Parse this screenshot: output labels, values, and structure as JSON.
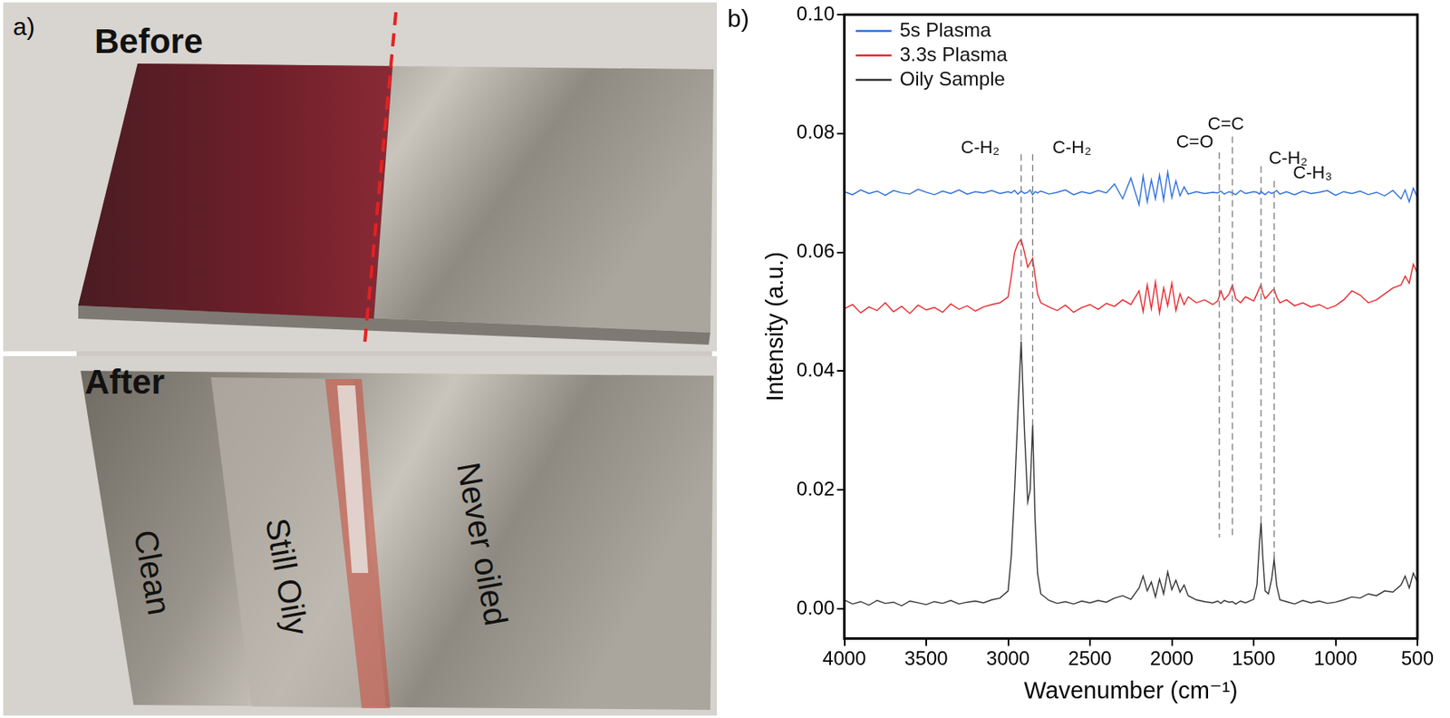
{
  "panel_a": {
    "label": "a)",
    "before": {
      "title": "Before"
    },
    "after": {
      "title": "After",
      "regions": [
        "Clean",
        "Still Oily",
        "Never oiled"
      ]
    }
  },
  "chart_data": {
    "type": "line",
    "label": "b)",
    "x_label": "Wavenumber (cm⁻¹)",
    "y_label": "Intensity (a.u.)",
    "xlim": [
      4000,
      500
    ],
    "xticks": [
      4000,
      3500,
      3000,
      2500,
      2000,
      1500,
      1000,
      500
    ],
    "ylim": [
      -0.005,
      0.1
    ],
    "yticks": [
      {
        "value": 0,
        "label": "0.00"
      },
      {
        "value": 0.02,
        "label": "0.02"
      },
      {
        "value": 0.04,
        "label": "0.04"
      },
      {
        "value": 0.06,
        "label": "0.06"
      },
      {
        "value": 0.08,
        "label": "0.08"
      },
      {
        "value": 0.1,
        "label": "0.10"
      }
    ],
    "grid": false,
    "legend": "upper left",
    "x": [
      4000,
      3950,
      3900,
      3850,
      3800,
      3750,
      3700,
      3650,
      3600,
      3550,
      3500,
      3450,
      3400,
      3350,
      3300,
      3250,
      3200,
      3150,
      3100,
      3050,
      3000,
      2980,
      2960,
      2940,
      2920,
      2900,
      2880,
      2865,
      2850,
      2835,
      2820,
      2800,
      2750,
      2700,
      2650,
      2600,
      2550,
      2500,
      2450,
      2400,
      2350,
      2300,
      2250,
      2200,
      2175,
      2150,
      2125,
      2100,
      2075,
      2050,
      2025,
      2000,
      1975,
      1950,
      1925,
      1900,
      1850,
      1800,
      1750,
      1720,
      1700,
      1680,
      1650,
      1630,
      1610,
      1580,
      1550,
      1500,
      1480,
      1465,
      1455,
      1445,
      1430,
      1410,
      1390,
      1375,
      1360,
      1340,
      1300,
      1250,
      1200,
      1150,
      1100,
      1050,
      1000,
      950,
      900,
      850,
      800,
      750,
      700,
      650,
      600,
      575,
      550,
      525,
      500
    ],
    "series": [
      {
        "name": "5s Plasma",
        "color": "#2e6fdc",
        "values": [
          0.0702,
          0.0697,
          0.0705,
          0.0699,
          0.0703,
          0.0696,
          0.0704,
          0.07,
          0.0698,
          0.0706,
          0.0701,
          0.0697,
          0.0703,
          0.0699,
          0.0705,
          0.0698,
          0.0702,
          0.07,
          0.0704,
          0.0699,
          0.0702,
          0.07,
          0.0704,
          0.0698,
          0.0703,
          0.0699,
          0.0701,
          0.0705,
          0.0697,
          0.0702,
          0.07,
          0.0703,
          0.0698,
          0.0701,
          0.0705,
          0.0697,
          0.0702,
          0.0699,
          0.0704,
          0.07,
          0.0715,
          0.069,
          0.0725,
          0.068,
          0.0728,
          0.0685,
          0.0722,
          0.069,
          0.073,
          0.0688,
          0.0735,
          0.0692,
          0.072,
          0.0695,
          0.071,
          0.0698,
          0.0702,
          0.0699,
          0.0701,
          0.07,
          0.0703,
          0.0698,
          0.0702,
          0.07,
          0.0697,
          0.0704,
          0.0699,
          0.0702,
          0.0701,
          0.0698,
          0.0703,
          0.07,
          0.0697,
          0.0702,
          0.0699,
          0.0701,
          0.0704,
          0.0698,
          0.0702,
          0.0697,
          0.0703,
          0.0699,
          0.0701,
          0.0704,
          0.0696,
          0.0702,
          0.0699,
          0.0703,
          0.0697,
          0.0701,
          0.0695,
          0.0704,
          0.069,
          0.0705,
          0.0685,
          0.0708,
          0.0692
        ]
      },
      {
        "name": "3.3s Plasma",
        "color": "#e8262b",
        "values": [
          0.0505,
          0.0512,
          0.0498,
          0.0508,
          0.0502,
          0.0515,
          0.05,
          0.0509,
          0.0497,
          0.0511,
          0.0503,
          0.0507,
          0.0499,
          0.0513,
          0.0504,
          0.051,
          0.0501,
          0.0508,
          0.0512,
          0.0515,
          0.0525,
          0.056,
          0.06,
          0.0615,
          0.0622,
          0.06,
          0.0575,
          0.0582,
          0.059,
          0.056,
          0.053,
          0.0515,
          0.0508,
          0.0502,
          0.0511,
          0.0499,
          0.0507,
          0.0512,
          0.0504,
          0.0514,
          0.0509,
          0.052,
          0.0512,
          0.0535,
          0.05,
          0.0545,
          0.0505,
          0.055,
          0.0498,
          0.054,
          0.051,
          0.0548,
          0.0502,
          0.053,
          0.0512,
          0.0525,
          0.0515,
          0.052,
          0.0512,
          0.0518,
          0.0535,
          0.052,
          0.053,
          0.0545,
          0.0522,
          0.0515,
          0.0525,
          0.0518,
          0.053,
          0.054,
          0.0545,
          0.0532,
          0.0522,
          0.0528,
          0.0535,
          0.0538,
          0.0525,
          0.0515,
          0.052,
          0.051,
          0.0515,
          0.0508,
          0.0512,
          0.0505,
          0.051,
          0.052,
          0.0535,
          0.0528,
          0.0515,
          0.052,
          0.053,
          0.054,
          0.0545,
          0.056,
          0.0548,
          0.058,
          0.0565
        ]
      },
      {
        "name": "Oily Sample",
        "color": "#333333",
        "values": [
          0.0015,
          0.0008,
          0.0012,
          0.0006,
          0.0014,
          0.0009,
          0.0011,
          0.0005,
          0.0013,
          0.001,
          0.0007,
          0.0012,
          0.0009,
          0.0014,
          0.0008,
          0.0011,
          0.0013,
          0.001,
          0.0015,
          0.0018,
          0.003,
          0.009,
          0.02,
          0.033,
          0.045,
          0.03,
          0.018,
          0.02,
          0.031,
          0.015,
          0.006,
          0.0025,
          0.0014,
          0.0009,
          0.0012,
          0.0008,
          0.0013,
          0.001,
          0.0014,
          0.0011,
          0.0018,
          0.0022,
          0.0016,
          0.0035,
          0.0055,
          0.003,
          0.0045,
          0.002,
          0.005,
          0.0025,
          0.0062,
          0.0032,
          0.0048,
          0.0028,
          0.004,
          0.0022,
          0.0015,
          0.0012,
          0.001,
          0.0013,
          0.0009,
          0.0014,
          0.0011,
          0.0012,
          0.0008,
          0.0013,
          0.001,
          0.0016,
          0.004,
          0.011,
          0.0145,
          0.009,
          0.003,
          0.0025,
          0.005,
          0.0083,
          0.004,
          0.0015,
          0.0012,
          0.0008,
          0.0014,
          0.001,
          0.0013,
          0.0009,
          0.0011,
          0.0015,
          0.002,
          0.0018,
          0.0025,
          0.0022,
          0.003,
          0.0028,
          0.004,
          0.0055,
          0.0035,
          0.006,
          0.0045
        ]
      }
    ],
    "annotations": [
      {
        "text": "C-H₂",
        "x": 3170,
        "y": 0.0775
      },
      {
        "text": "C-H₂",
        "x": 2610,
        "y": 0.0775
      },
      {
        "text": "C=O",
        "x": 1860,
        "y": 0.0785
      },
      {
        "text": "C=C",
        "x": 1670,
        "y": 0.0815
      },
      {
        "text": "C-H₂",
        "x": 1290,
        "y": 0.0757
      },
      {
        "text": "C-H₃",
        "x": 1140,
        "y": 0.0733
      }
    ],
    "peak_lines": [
      {
        "x": 2920,
        "from": 0.0765,
        "to": 0.0445
      },
      {
        "x": 2850,
        "from": 0.0765,
        "to": 0.0305
      },
      {
        "x": 1710,
        "from": 0.0768,
        "to": 0.012
      },
      {
        "x": 1630,
        "from": 0.0795,
        "to": 0.012
      },
      {
        "x": 1455,
        "from": 0.0745,
        "to": 0.0145
      },
      {
        "x": 1375,
        "from": 0.072,
        "to": 0.008
      }
    ]
  }
}
